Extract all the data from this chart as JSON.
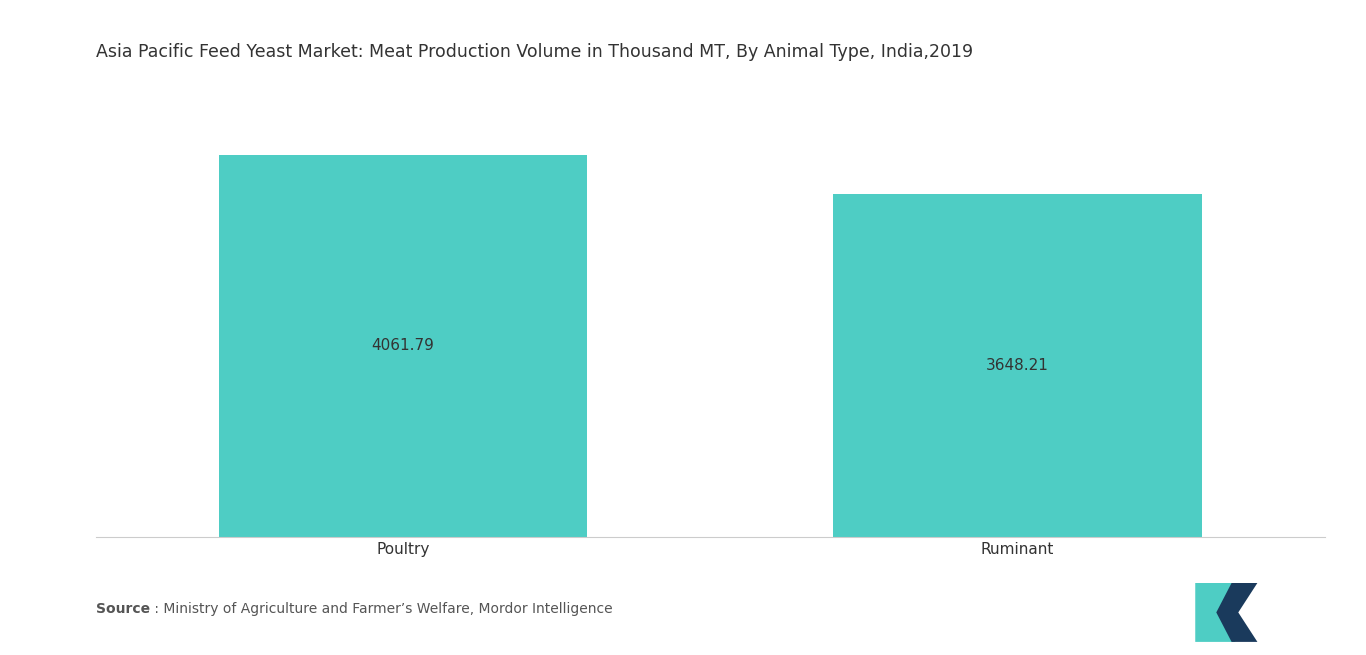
{
  "title": "Asia Pacific Feed Yeast Market: Meat Production Volume in Thousand MT, By Animal Type, India,2019",
  "categories": [
    "Poultry",
    "Ruminant"
  ],
  "values": [
    4061.79,
    3648.21
  ],
  "bar_color": "#4ECDC4",
  "label_color": "#333333",
  "value_labels": [
    "4061.79",
    "3648.21"
  ],
  "source_bold": "Source",
  "source_rest": " : Ministry of Agriculture and Farmer’s Welfare, Mordor Intelligence",
  "background_color": "#ffffff",
  "title_fontsize": 12.5,
  "label_fontsize": 11,
  "value_fontsize": 11,
  "source_fontsize": 10,
  "ylim": [
    0,
    4800
  ],
  "bar_positions": [
    1,
    3
  ],
  "bar_width": 1.2,
  "xlim": [
    0,
    4
  ]
}
